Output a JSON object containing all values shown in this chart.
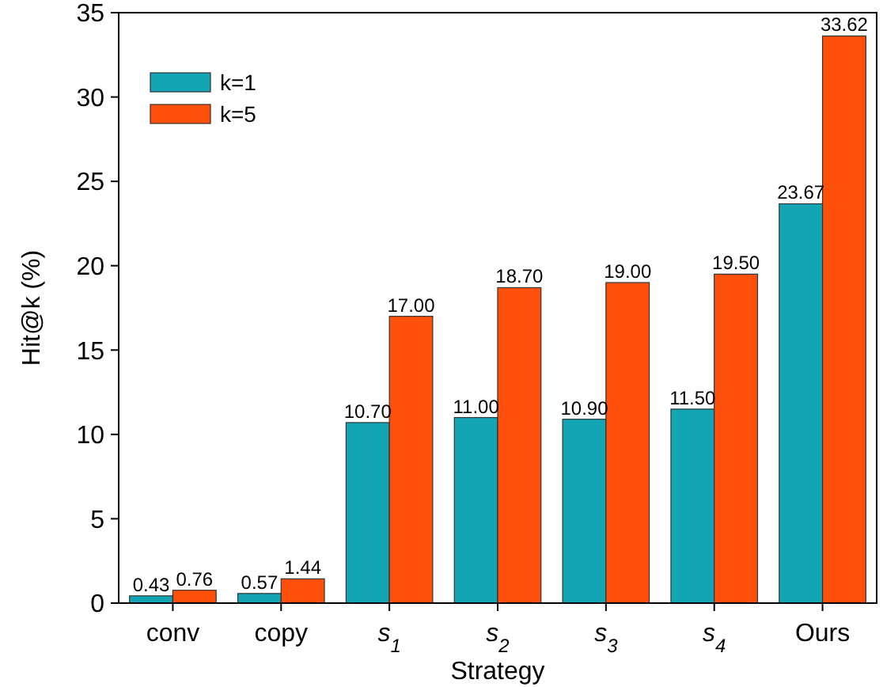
{
  "chart_data": {
    "type": "bar",
    "xlabel": "Strategy",
    "ylabel": "Hit@k (%)",
    "categories": [
      "conv",
      "copy",
      "s$_{1}$",
      "s$_{2}$",
      "s$_{3}$",
      "s$_{4}$",
      "Ours"
    ],
    "series": [
      {
        "name": "k=1",
        "color": "#13a5b3",
        "values": [
          0.43,
          0.57,
          10.7,
          11.0,
          10.9,
          11.5,
          23.67
        ],
        "value_labels": [
          "0.43",
          "0.57",
          "10.70",
          "11.00",
          "10.90",
          "11.50",
          "23.67"
        ]
      },
      {
        "name": "k=5",
        "color": "#fe4f0b",
        "values": [
          0.76,
          1.44,
          17.0,
          18.7,
          19.0,
          19.5,
          33.62
        ],
        "value_labels": [
          "0.76",
          "1.44",
          "17.00",
          "18.70",
          "19.00",
          "19.50",
          "33.62"
        ]
      }
    ],
    "ylim": [
      0,
      35
    ],
    "yticks": [
      0,
      5,
      10,
      15,
      20,
      25,
      30,
      35
    ],
    "grid": false,
    "legend": "top left"
  }
}
